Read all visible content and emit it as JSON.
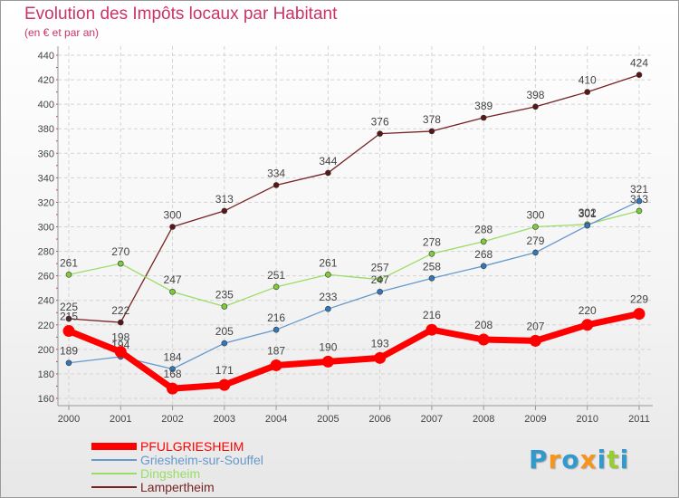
{
  "header": {
    "title": "Evolution des Impôts locaux par Habitant",
    "subtitle": "(en € et par an)"
  },
  "legend": [
    {
      "name": "PFULGRIESHEIM",
      "color": "#ff0000"
    },
    {
      "name": "Griesheim-sur-Souffel",
      "color": "#6699cc"
    },
    {
      "name": "Dingsheim",
      "color": "#99dd66"
    },
    {
      "name": "Lampertheim",
      "color": "#772222"
    }
  ],
  "logo": {
    "letters": [
      "P",
      "r",
      "o",
      "x",
      "i",
      "t",
      "i"
    ],
    "colors": [
      "#3399cc",
      "#f7941d",
      "#3399cc",
      "#f7941d",
      "#3399cc",
      "#99cc33",
      "#3399cc"
    ]
  },
  "chart_data": {
    "type": "line",
    "title": "Evolution des Impôts locaux par Habitant",
    "subtitle": "(en € et par an)",
    "xlabel": "",
    "ylabel": "",
    "categories": [
      "2000",
      "2001",
      "2002",
      "2003",
      "2004",
      "2005",
      "2006",
      "2007",
      "2008",
      "2009",
      "2010",
      "2011"
    ],
    "ylim": [
      160,
      440
    ],
    "yticks": [
      160,
      180,
      200,
      220,
      240,
      260,
      280,
      300,
      320,
      340,
      360,
      380,
      400,
      420,
      440
    ],
    "grid": true,
    "legend_position": "bottom-left",
    "series": [
      {
        "name": "Lampertheim",
        "color": "#772222",
        "marker": "#5a1515",
        "values": [
          225,
          222,
          300,
          313,
          334,
          344,
          376,
          378,
          389,
          398,
          410,
          424
        ]
      },
      {
        "name": "Dingsheim",
        "color": "#99dd66",
        "marker": "#7fcc3a",
        "values": [
          261,
          270,
          247,
          235,
          251,
          261,
          257,
          278,
          288,
          300,
          302,
          313
        ]
      },
      {
        "name": "Griesheim-sur-Souffel",
        "color": "#6699cc",
        "marker": "#3377bb",
        "values": [
          189,
          194,
          184,
          205,
          216,
          233,
          247,
          258,
          268,
          279,
          301,
          321
        ]
      },
      {
        "name": "PFULGRIESHEIM",
        "color": "#ff0000",
        "marker": "#ff0000",
        "values": [
          215,
          198,
          168,
          171,
          187,
          190,
          193,
          216,
          208,
          207,
          220,
          229
        ]
      }
    ]
  }
}
